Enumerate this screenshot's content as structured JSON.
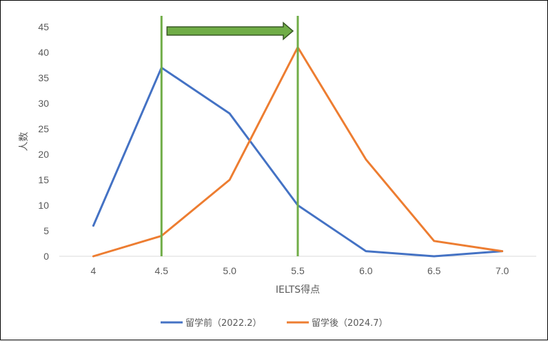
{
  "chart_data": {
    "type": "line",
    "categories": [
      "4",
      "4.5",
      "5.0",
      "5.5",
      "6.0",
      "6.5",
      "7.0"
    ],
    "series": [
      {
        "name": "留学前（2022.2）",
        "color": "#4472C4",
        "values": [
          6,
          37,
          28,
          10,
          1,
          0,
          1
        ]
      },
      {
        "name": "留学後（2024.7）",
        "color": "#ED7D31",
        "values": [
          0,
          4,
          15,
          41,
          19,
          3,
          1
        ]
      }
    ],
    "xlabel": "IELTS得点",
    "ylabel": "人数",
    "ylim": [
      0,
      45
    ],
    "yticks": [
      "0",
      "5",
      "10",
      "15",
      "20",
      "25",
      "30",
      "35",
      "40",
      "45"
    ],
    "grid": false,
    "legend": "bottom",
    "annotations": {
      "vertical_lines_at": [
        "4.5",
        "5.5"
      ],
      "vertical_line_color": "#70AD47",
      "arrow": {
        "from": "4.5",
        "to": "5.5",
        "fill": "#70AD47",
        "stroke": "#375623"
      }
    }
  }
}
